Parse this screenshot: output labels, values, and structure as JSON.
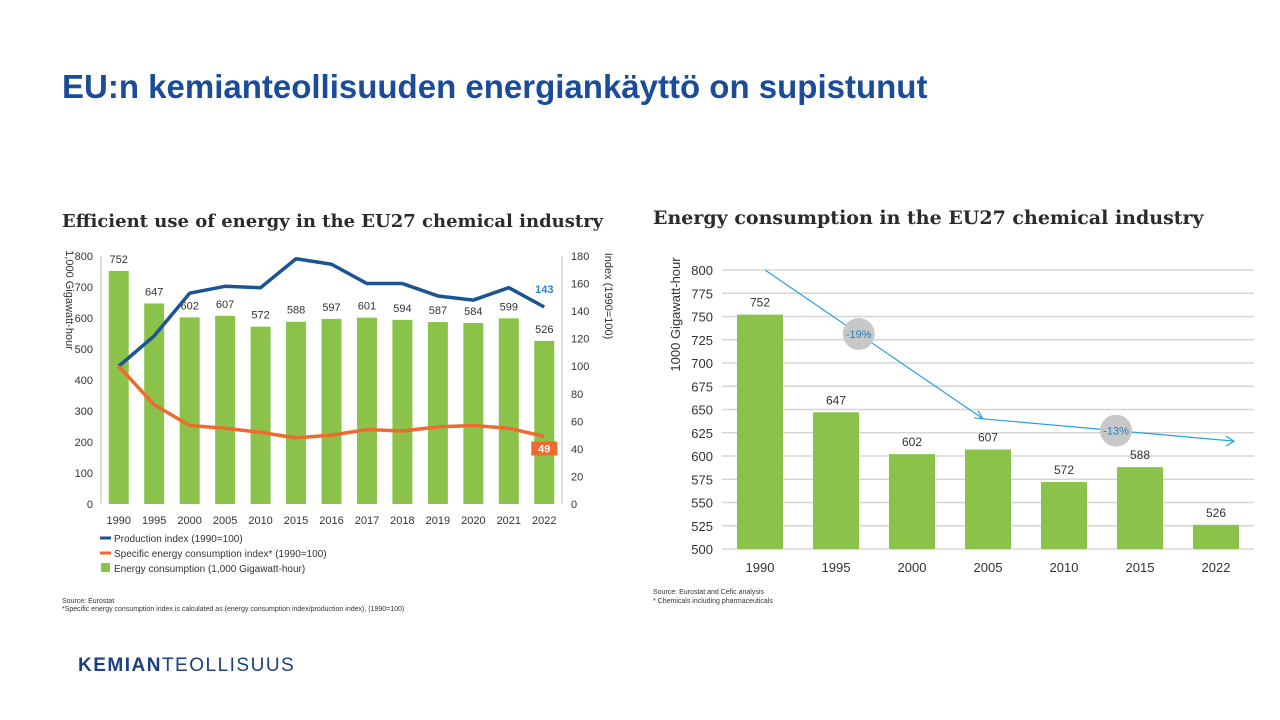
{
  "slide": {
    "title": "EU:n kemianteollisuuden energiankäyttö on supistunut",
    "logo_bold": "KEMIAN",
    "logo_light": "TEOLLISUUS"
  },
  "chart_data": [
    {
      "type": "bar",
      "title": "Efficient use of energy in the EU27 chemical industry",
      "categories": [
        "1990",
        "1995",
        "2000",
        "2005",
        "2010",
        "2015",
        "2016",
        "2017",
        "2018",
        "2019",
        "2020",
        "2021",
        "2022"
      ],
      "ylabel": "1,000 Gigawatt-hour",
      "y2label": "Index (1990=100)",
      "ylim": [
        0,
        800
      ],
      "y2lim": [
        0,
        180
      ],
      "yticks": [
        0,
        100,
        200,
        300,
        400,
        500,
        600,
        700,
        800
      ],
      "y2ticks": [
        0,
        20,
        40,
        60,
        80,
        100,
        120,
        140,
        160,
        180
      ],
      "series": [
        {
          "name": "Energy consumption (1,000 Gigawatt-hour)",
          "kind": "bar",
          "axis": "left",
          "color": "#8bc34a",
          "values": [
            752,
            647,
            602,
            607,
            572,
            588,
            597,
            601,
            594,
            587,
            584,
            599,
            526
          ]
        },
        {
          "name": "Production index (1990=100)",
          "kind": "line",
          "axis": "right",
          "color": "#1a5591",
          "values": [
            100,
            122,
            153,
            158,
            157,
            178,
            174,
            160,
            160,
            151,
            148,
            157,
            143
          ]
        },
        {
          "name": "Specific energy consumption index* (1990=100)",
          "kind": "line",
          "axis": "right",
          "color": "#ef6a2f",
          "values": [
            100,
            72,
            57,
            55,
            52,
            48,
            50,
            54,
            53,
            56,
            57,
            55,
            49
          ]
        }
      ],
      "last_labels": {
        "production": "143",
        "specific": "49"
      },
      "legend_position": "bottom",
      "grid": false,
      "source": "Source: Eurostat",
      "footnote": "*Specific energy consumption index is calculated as (energy consumption index/production index), (1990=100)"
    },
    {
      "type": "bar",
      "title": "Energy consumption in the EU27 chemical industry",
      "categories": [
        "1990",
        "1995",
        "2000",
        "2005",
        "2010",
        "2015",
        "2022"
      ],
      "values": [
        752,
        647,
        602,
        607,
        572,
        588,
        526
      ],
      "ylabel": "1000 Gigawatt-hour",
      "ylim": [
        500,
        800
      ],
      "yticks": [
        500,
        525,
        550,
        575,
        600,
        625,
        650,
        675,
        700,
        725,
        750,
        775,
        800
      ],
      "grid": true,
      "color": "#8bc34a",
      "annotations": [
        {
          "text": "-19%",
          "from": "1990",
          "to": "2005"
        },
        {
          "text": "-13%",
          "from": "2005",
          "to": "2022"
        }
      ],
      "source": "Source: Eurostat and Cefic analysis",
      "footnote": "* Chemicals including pharmaceuticals"
    }
  ]
}
